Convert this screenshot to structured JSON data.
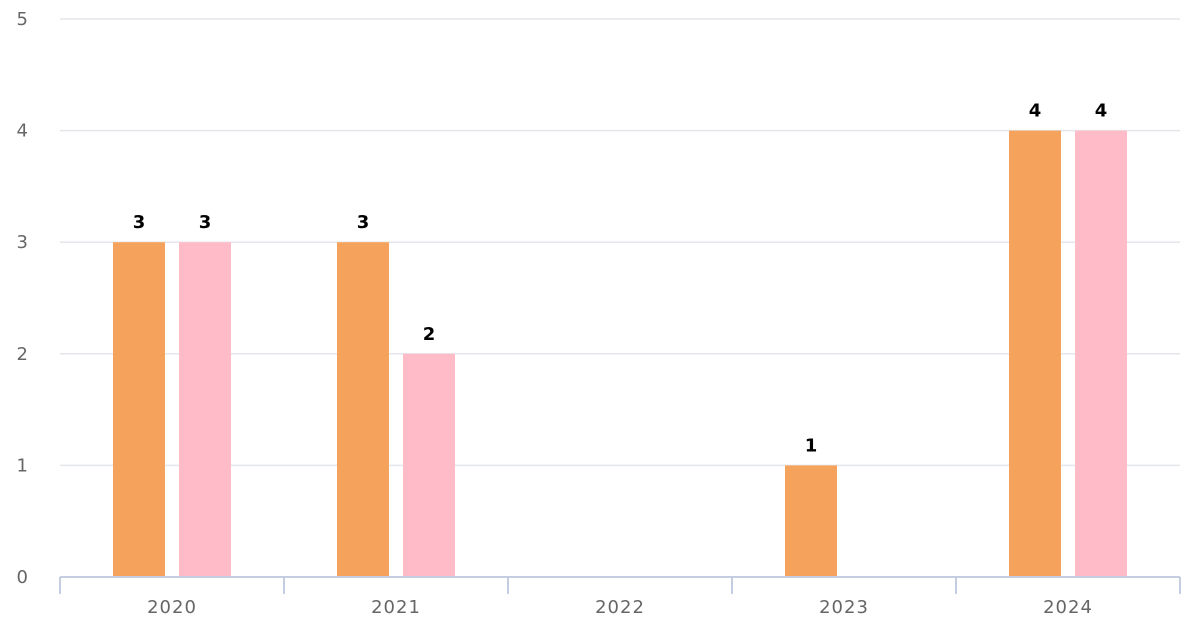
{
  "chart_data": {
    "type": "bar",
    "categories": [
      "2020",
      "2021",
      "2022",
      "2023",
      "2024"
    ],
    "series": [
      {
        "color": "#f5a35c",
        "values": [
          3,
          3,
          0,
          1,
          4
        ]
      },
      {
        "color": "#ffbcc8",
        "values": [
          3,
          2,
          0,
          0,
          4
        ]
      }
    ],
    "ylim": [
      0,
      5
    ],
    "yticks": [
      "0",
      "1",
      "2",
      "3",
      "4",
      "5"
    ],
    "grid": true,
    "data_labels": true
  }
}
